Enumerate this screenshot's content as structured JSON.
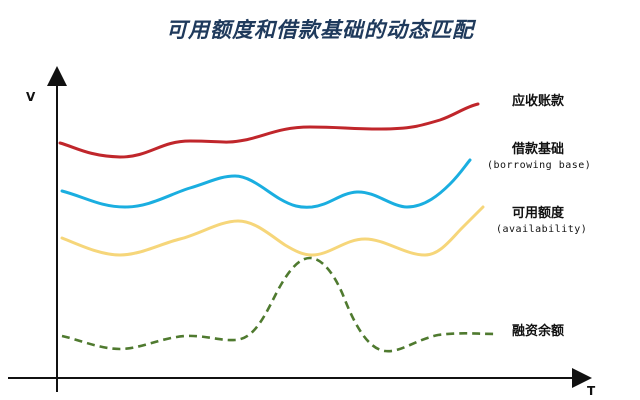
{
  "title": "可用额度和借款基础的动态匹配",
  "axes": {
    "y_label": "V",
    "x_label": "T"
  },
  "curves": [
    {
      "id": "receivables",
      "label": "应收账款",
      "sublabel": "",
      "color": "#c0262b",
      "style": "solid"
    },
    {
      "id": "borrowing_base",
      "label": "借款基础",
      "sublabel": "(borrowing base)",
      "color": "#1aaee0",
      "style": "solid"
    },
    {
      "id": "availability",
      "label": "可用额度",
      "sublabel": "(availability)",
      "color": "#f6d67a",
      "style": "solid"
    },
    {
      "id": "financing_balance",
      "label": "融资余额",
      "sublabel": "",
      "color": "#4f7a2f",
      "style": "dashed"
    }
  ]
}
